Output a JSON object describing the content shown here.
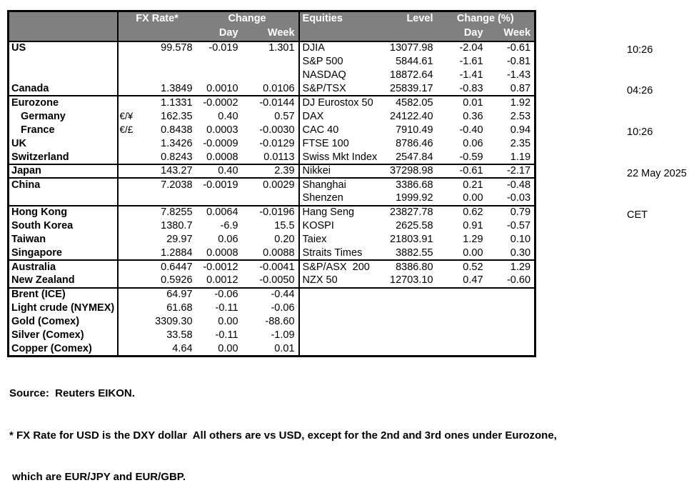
{
  "fx_table": {
    "header": {
      "rate": "FX Rate*",
      "change": "Change",
      "day": "Day",
      "week": "Week"
    }
  },
  "eq_table": {
    "header": {
      "name": "Equities",
      "level": "Level",
      "change": "Change (%)",
      "day": "Day",
      "week": "Week"
    }
  },
  "rows": [
    {
      "fx_label": "US",
      "fx_sym": "",
      "fx_rate": "99.578",
      "fx_day": "-0.019",
      "fx_week": "1.301",
      "eq_label": "DJIA",
      "eq_level": "13077.98",
      "eq_day": "-2.04",
      "eq_week": "-0.61",
      "indent": false,
      "group_end": false
    },
    {
      "fx_label": "",
      "fx_sym": "",
      "fx_rate": "",
      "fx_day": "",
      "fx_week": "",
      "eq_label": "S&P 500",
      "eq_level": "5844.61",
      "eq_day": "-1.61",
      "eq_week": "-0.81",
      "indent": false,
      "group_end": false
    },
    {
      "fx_label": "",
      "fx_sym": "",
      "fx_rate": "",
      "fx_day": "",
      "fx_week": "",
      "eq_label": "NASDAQ",
      "eq_level": "18872.64",
      "eq_day": "-1.41",
      "eq_week": "-1.43",
      "indent": false,
      "group_end": false
    },
    {
      "fx_label": "Canada",
      "fx_sym": "",
      "fx_rate": "1.3849",
      "fx_day": "0.0010",
      "fx_week": "0.0106",
      "eq_label": "S&P/TSX",
      "eq_level": "25839.17",
      "eq_day": "-0.83",
      "eq_week": "0.87",
      "indent": false,
      "group_end": true
    },
    {
      "fx_label": "Eurozone",
      "fx_sym": "",
      "fx_rate": "1.1331",
      "fx_day": "-0.0002",
      "fx_week": "-0.0144",
      "eq_label": "DJ Eurostox 50",
      "eq_level": "4582.05",
      "eq_day": "0.01",
      "eq_week": "1.92",
      "indent": false,
      "group_end": false
    },
    {
      "fx_label": "Germany",
      "fx_sym": "€/¥",
      "fx_rate": "162.35",
      "fx_day": "0.40",
      "fx_week": "0.57",
      "eq_label": "DAX",
      "eq_level": "24122.40",
      "eq_day": "0.36",
      "eq_week": "2.53",
      "indent": true,
      "group_end": false
    },
    {
      "fx_label": "France",
      "fx_sym": "€/£",
      "fx_rate": "0.8438",
      "fx_day": "0.0003",
      "fx_week": "-0.0030",
      "eq_label": "CAC 40",
      "eq_level": "7910.49",
      "eq_day": "-0.40",
      "eq_week": "0.94",
      "indent": true,
      "group_end": false
    },
    {
      "fx_label": "UK",
      "fx_sym": "",
      "fx_rate": "1.3426",
      "fx_day": "-0.0009",
      "fx_week": "-0.0129",
      "eq_label": "FTSE 100",
      "eq_level": "8786.46",
      "eq_day": "0.06",
      "eq_week": "2.35",
      "indent": false,
      "group_end": false
    },
    {
      "fx_label": "Switzerland",
      "fx_sym": "",
      "fx_rate": "0.8243",
      "fx_day": "0.0008",
      "fx_week": "0.0113",
      "eq_label": "Swiss Mkt Index",
      "eq_level": "2547.84",
      "eq_day": "-0.59",
      "eq_week": "1.19",
      "indent": false,
      "group_end": true
    },
    {
      "fx_label": "Japan",
      "fx_sym": "",
      "fx_rate": "143.27",
      "fx_day": "0.40",
      "fx_week": "2.39",
      "eq_label": "Nikkei",
      "eq_level": "37298.98",
      "eq_day": "-0.61",
      "eq_week": "-2.17",
      "indent": false,
      "group_end": true
    },
    {
      "fx_label": "China",
      "fx_sym": "",
      "fx_rate": "7.2038",
      "fx_day": "-0.0019",
      "fx_week": "0.0029",
      "eq_label": "Shanghai",
      "eq_level": "3386.68",
      "eq_day": "0.21",
      "eq_week": "-0.48",
      "indent": false,
      "group_end": false
    },
    {
      "fx_label": "",
      "fx_sym": "",
      "fx_rate": "",
      "fx_day": "",
      "fx_week": "",
      "eq_label": "Shenzen",
      "eq_level": "1999.92",
      "eq_day": "0.00",
      "eq_week": "-0.03",
      "indent": false,
      "group_end": true
    },
    {
      "fx_label": "Hong Kong",
      "fx_sym": "",
      "fx_rate": "7.8255",
      "fx_day": "0.0064",
      "fx_week": "-0.0196",
      "eq_label": "Hang Seng",
      "eq_level": "23827.78",
      "eq_day": "0.62",
      "eq_week": "0.79",
      "indent": false,
      "group_end": false
    },
    {
      "fx_label": "South Korea",
      "fx_sym": "",
      "fx_rate": "1380.7",
      "fx_day": "-6.9",
      "fx_week": "15.5",
      "eq_label": "KOSPI",
      "eq_level": "2625.58",
      "eq_day": "0.91",
      "eq_week": "-0.57",
      "indent": false,
      "group_end": false
    },
    {
      "fx_label": "Taiwan",
      "fx_sym": "",
      "fx_rate": "29.97",
      "fx_day": "0.06",
      "fx_week": "0.20",
      "eq_label": "Taiex",
      "eq_level": "21803.91",
      "eq_day": "1.29",
      "eq_week": "0.10",
      "indent": false,
      "group_end": false
    },
    {
      "fx_label": "Singapore",
      "fx_sym": "",
      "fx_rate": "1.2884",
      "fx_day": "0.0008",
      "fx_week": "0.0088",
      "eq_label": "Straits Times",
      "eq_level": "3882.55",
      "eq_day": "0.00",
      "eq_week": "0.30",
      "indent": false,
      "group_end": true
    },
    {
      "fx_label": "Australia",
      "fx_sym": "",
      "fx_rate": "0.6447",
      "fx_day": "-0.0012",
      "fx_week": "-0.0041",
      "eq_label": "S&P/ASX  200",
      "eq_level": "8386.80",
      "eq_day": "0.52",
      "eq_week": "1.29",
      "indent": false,
      "group_end": false
    },
    {
      "fx_label": "New Zealand",
      "fx_sym": "",
      "fx_rate": "0.5926",
      "fx_day": "0.0012",
      "fx_week": "-0.0050",
      "eq_label": "NZX 50",
      "eq_level": "12703.10",
      "eq_day": "0.47",
      "eq_week": "-0.60",
      "indent": false,
      "group_end": true
    },
    {
      "fx_label": "Brent (ICE)",
      "fx_sym": "",
      "fx_rate": "64.97",
      "fx_day": "-0.06",
      "fx_week": "-0.44",
      "eq_label": "",
      "eq_level": "",
      "eq_day": "",
      "eq_week": "",
      "indent": false,
      "group_end": false
    },
    {
      "fx_label": "Light crude (NYMEX)",
      "fx_sym": "",
      "fx_rate": "61.68",
      "fx_day": "-0.11",
      "fx_week": "-0.06",
      "eq_label": "",
      "eq_level": "",
      "eq_day": "",
      "eq_week": "",
      "indent": false,
      "group_end": false
    },
    {
      "fx_label": "Gold (Comex)",
      "fx_sym": "",
      "fx_rate": "3309.30",
      "fx_day": "0.00",
      "fx_week": "-88.60",
      "eq_label": "",
      "eq_level": "",
      "eq_day": "",
      "eq_week": "",
      "indent": false,
      "group_end": false
    },
    {
      "fx_label": "Silver (Comex)",
      "fx_sym": "",
      "fx_rate": "33.58",
      "fx_day": "-0.11",
      "fx_week": "-1.09",
      "eq_label": "",
      "eq_level": "",
      "eq_day": "",
      "eq_week": "",
      "indent": false,
      "group_end": false
    },
    {
      "fx_label": "Copper (Comex)",
      "fx_sym": "",
      "fx_rate": "4.64",
      "fx_day": "0.00",
      "fx_week": "0.01",
      "eq_label": "",
      "eq_level": "",
      "eq_day": "",
      "eq_week": "",
      "indent": false,
      "group_end": false
    }
  ],
  "timestamps": [
    "10:26",
    "04:26",
    "10:26",
    "22 May 2025",
    "CET"
  ],
  "footer": {
    "source": "Source:  Reuters EIKON.",
    "footnote_line1": "* FX Rate for USD is the DXY dollar  All others are vs USD, except for the 2nd and 3rd ones under Eurozone,",
    "footnote_line2": " which are EUR/JPY and EUR/GBP."
  },
  "colors": {
    "header_bg": "#808080",
    "header_text": "#ffffff",
    "border": "#000000",
    "text": "#000000",
    "background": "#ffffff"
  }
}
